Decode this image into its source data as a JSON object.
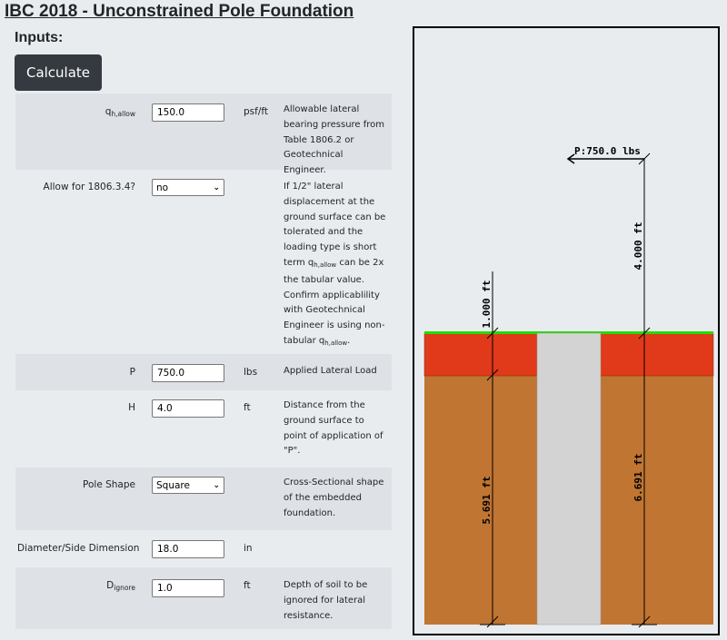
{
  "page": {
    "title": "IBC 2018 - Unconstrained Pole Foundation",
    "inputs_heading": "Inputs:",
    "calculate_label": "Calculate"
  },
  "inputs": {
    "qh": {
      "label_main": "q",
      "label_sub": "h,allow",
      "value": "150.0",
      "unit": "psf/ft",
      "description": "Allowable lateral bearing pressure from Table 1806.2 or Geotechnical Engineer."
    },
    "allow": {
      "label": "Allow for 1806.3.4?",
      "value": "no",
      "desc_a": "If 1/2\" lateral displacement at the ground surface can be tolerated and the loading type is short term q",
      "desc_sub1": "h,allow",
      "desc_b": " can be 2x the tabular value. Confirm applicablility with Geotechnical Engineer is using non-tabular q",
      "desc_sub2": "h,allow",
      "desc_c": "."
    },
    "p": {
      "label": "P",
      "value": "750.0",
      "unit": "lbs",
      "description": "Applied Lateral Load"
    },
    "h": {
      "label": "H",
      "value": "4.0",
      "unit": "ft",
      "description": "Distance from the ground surface to point of application of \"P\"."
    },
    "shape": {
      "label": "Pole Shape",
      "value": "Square",
      "description": "Cross-Sectional shape of the embedded foundation."
    },
    "diameter": {
      "label": "Diameter/Side Dimension",
      "value": "18.0",
      "unit": "in"
    },
    "dignore": {
      "label_main": "D",
      "label_sub": "ignore",
      "value": "1.0",
      "unit": "ft",
      "description": "Depth of soil to be ignored for lateral resistance."
    }
  },
  "diagram": {
    "load_label": "P:750.0 lbs",
    "dim_h": "4.000 ft",
    "dim_ignore": "1.000 ft",
    "dim_embed": "5.691 ft",
    "dim_total": "6.691 ft",
    "colors": {
      "ground_line": "#22dd00",
      "ignored_soil": "#e03a1a",
      "soil": "#c07532",
      "pole": "#d3d3d3"
    }
  }
}
